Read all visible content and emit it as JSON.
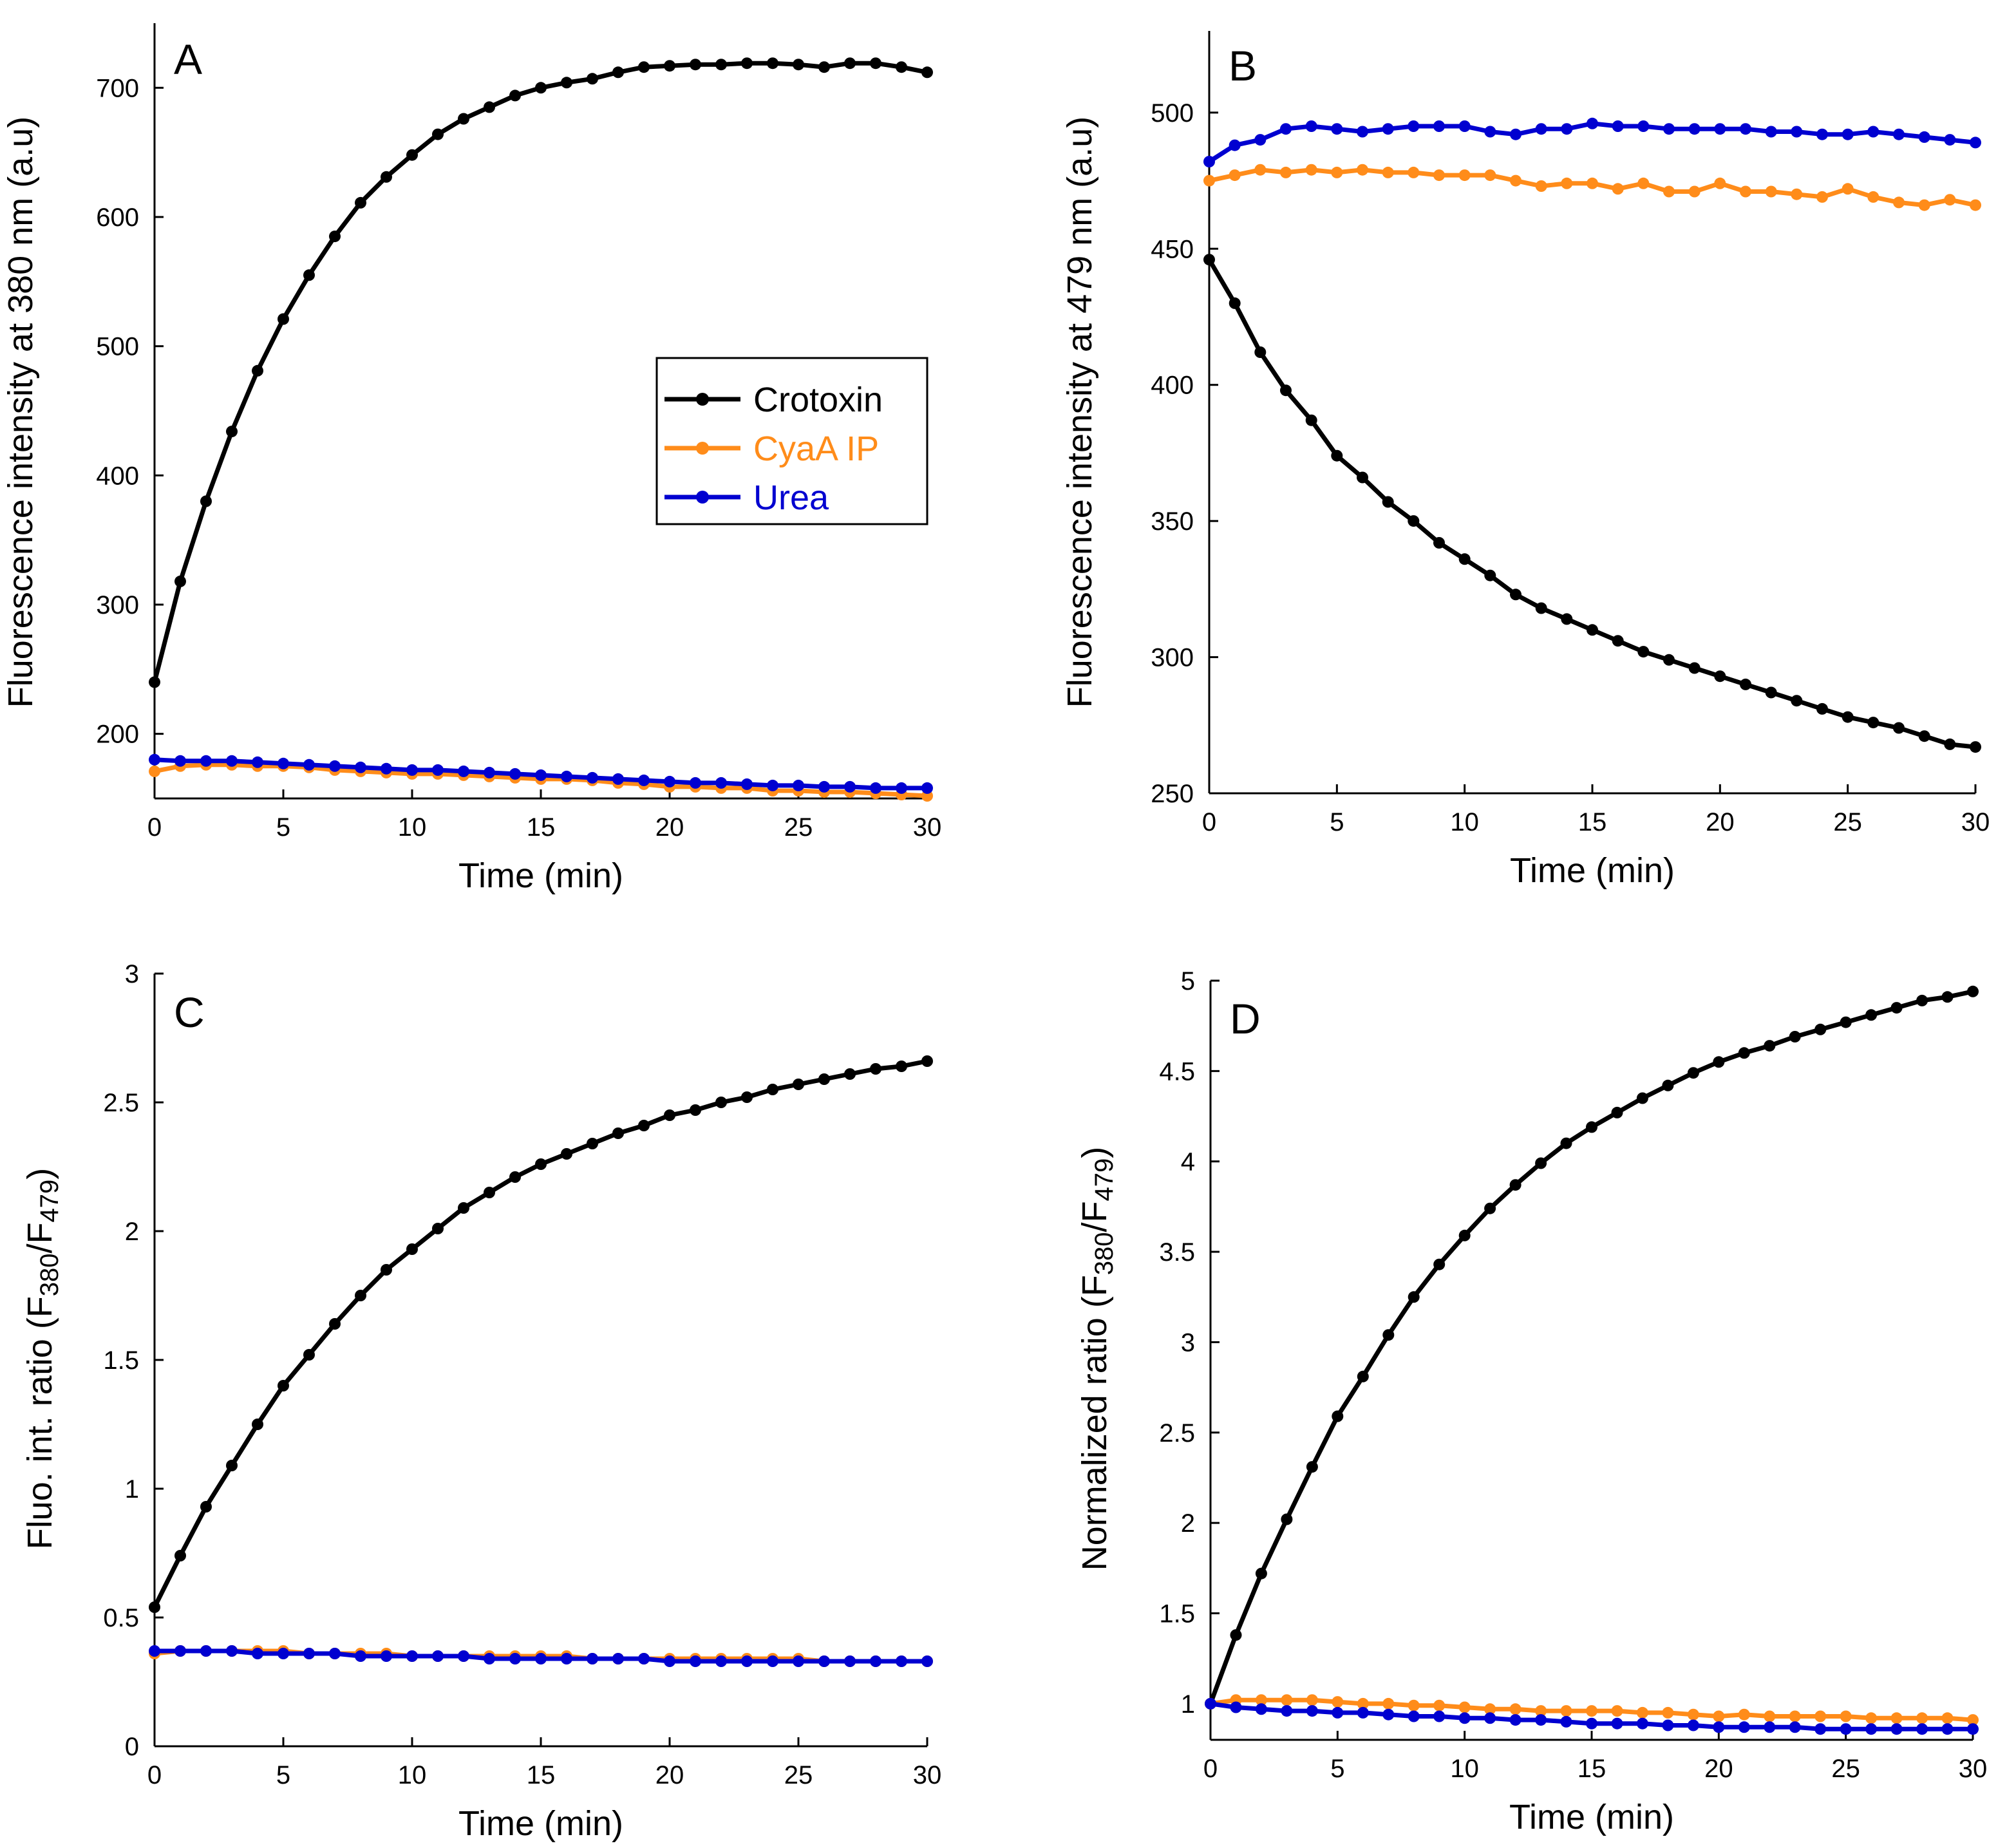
{
  "colors": {
    "crotoxin": "#000000",
    "cyaa": "#ff8c1a",
    "urea": "#0000d0",
    "axis": "#000000"
  },
  "legend": {
    "items": [
      {
        "label": "Crotoxin",
        "color": "#000000"
      },
      {
        "label": "CyaA IP",
        "color": "#ff8c1a"
      },
      {
        "label": "Urea",
        "color": "#0000d0"
      }
    ]
  },
  "chart_data": [
    {
      "panel": "A",
      "type": "line",
      "xlabel": "Time (min)",
      "ylabel": "Fluorescence intensity at 380 nm (a.u)",
      "xlim": [
        0,
        30
      ],
      "ylim": [
        150,
        750
      ],
      "xticks": [
        "0",
        "5",
        "10",
        "15",
        "20",
        "25",
        "30"
      ],
      "yticks": [
        "200",
        "300",
        "400",
        "500",
        "600",
        "700"
      ],
      "ytick_values": [
        200,
        300,
        400,
        500,
        600,
        700
      ],
      "legend_position": "center-right",
      "x": [
        0,
        1,
        2,
        3,
        4,
        5,
        6,
        7,
        8,
        9,
        10,
        11,
        12,
        13,
        14,
        15,
        16,
        17,
        18,
        19,
        20,
        21,
        22,
        23,
        24,
        25,
        26,
        27,
        28,
        29,
        30
      ],
      "series": [
        {
          "name": "Crotoxin",
          "color": "#000000",
          "values": [
            240,
            318,
            380,
            434,
            481,
            521,
            555,
            585,
            611,
            631,
            648,
            664,
            676,
            685,
            694,
            700,
            704,
            707,
            712,
            716,
            717,
            718,
            718,
            719,
            719,
            718,
            716,
            719,
            719,
            716,
            712
          ]
        },
        {
          "name": "CyaA IP",
          "color": "#ff8c1a",
          "values": [
            171,
            175,
            176,
            176,
            175,
            175,
            174,
            172,
            171,
            170,
            169,
            169,
            168,
            167,
            166,
            165,
            165,
            164,
            162,
            161,
            159,
            159,
            158,
            158,
            156,
            156,
            155,
            155,
            154,
            153,
            152
          ]
        },
        {
          "name": "Urea",
          "color": "#0000d0",
          "values": [
            180,
            179,
            179,
            179,
            178,
            177,
            176,
            175,
            174,
            173,
            172,
            172,
            171,
            170,
            169,
            168,
            167,
            166,
            165,
            164,
            163,
            162,
            162,
            161,
            160,
            160,
            159,
            159,
            158,
            158,
            158
          ]
        }
      ]
    },
    {
      "panel": "B",
      "type": "line",
      "xlabel": "Time (min)",
      "ylabel": "Fluorescence intensity at 479 nm (a.u)",
      "xlim": [
        0,
        30
      ],
      "ylim": [
        250,
        530
      ],
      "xticks": [
        "0",
        "5",
        "10",
        "15",
        "20",
        "25",
        "30"
      ],
      "yticks": [
        "250",
        "300",
        "350",
        "400",
        "450",
        "500"
      ],
      "ytick_values": [
        250,
        300,
        350,
        400,
        450,
        500
      ],
      "x": [
        0,
        1,
        2,
        3,
        4,
        5,
        6,
        7,
        8,
        9,
        10,
        11,
        12,
        13,
        14,
        15,
        16,
        17,
        18,
        19,
        20,
        21,
        22,
        23,
        24,
        25,
        26,
        27,
        28,
        29,
        30
      ],
      "series": [
        {
          "name": "Crotoxin",
          "color": "#000000",
          "values": [
            446,
            430,
            412,
            398,
            387,
            374,
            366,
            357,
            350,
            342,
            336,
            330,
            323,
            318,
            314,
            310,
            306,
            302,
            299,
            296,
            293,
            290,
            287,
            284,
            281,
            278,
            276,
            274,
            271,
            268,
            267
          ]
        },
        {
          "name": "CyaA IP",
          "color": "#ff8c1a",
          "values": [
            475,
            477,
            479,
            478,
            479,
            478,
            479,
            478,
            478,
            477,
            477,
            477,
            475,
            473,
            474,
            474,
            472,
            474,
            471,
            471,
            474,
            471,
            471,
            470,
            469,
            472,
            469,
            467,
            466,
            468,
            466
          ]
        },
        {
          "name": "Urea",
          "color": "#0000d0",
          "values": [
            482,
            488,
            490,
            494,
            495,
            494,
            493,
            494,
            495,
            495,
            495,
            493,
            492,
            494,
            494,
            496,
            495,
            495,
            494,
            494,
            494,
            494,
            493,
            493,
            492,
            492,
            493,
            492,
            491,
            490,
            489
          ]
        }
      ]
    },
    {
      "panel": "C",
      "type": "line",
      "xlabel": "Time (min)",
      "ylabel_main": "Fluo. int. ratio (F",
      "ylabel_sub1": "380",
      "ylabel_mid": "/F",
      "ylabel_sub2": "479",
      "ylabel_end": ")",
      "xlim": [
        0,
        30
      ],
      "ylim": [
        0,
        3
      ],
      "xticks": [
        "0",
        "5",
        "10",
        "15",
        "20",
        "25",
        "30"
      ],
      "yticks": [
        "0",
        "0.5",
        "1",
        "1.5",
        "2",
        "2.5",
        "3"
      ],
      "ytick_values": [
        0,
        0.5,
        1,
        1.5,
        2,
        2.5,
        3
      ],
      "x": [
        0,
        1,
        2,
        3,
        4,
        5,
        6,
        7,
        8,
        9,
        10,
        11,
        12,
        13,
        14,
        15,
        16,
        17,
        18,
        19,
        20,
        21,
        22,
        23,
        24,
        25,
        26,
        27,
        28,
        29,
        30
      ],
      "series": [
        {
          "name": "Crotoxin",
          "color": "#000000",
          "values": [
            0.54,
            0.74,
            0.93,
            1.09,
            1.25,
            1.4,
            1.52,
            1.64,
            1.75,
            1.85,
            1.93,
            2.01,
            2.09,
            2.15,
            2.21,
            2.26,
            2.3,
            2.34,
            2.38,
            2.41,
            2.45,
            2.47,
            2.5,
            2.52,
            2.55,
            2.57,
            2.59,
            2.61,
            2.63,
            2.64,
            2.66
          ]
        },
        {
          "name": "CyaA IP",
          "color": "#ff8c1a",
          "values": [
            0.36,
            0.37,
            0.37,
            0.37,
            0.37,
            0.37,
            0.36,
            0.36,
            0.36,
            0.36,
            0.35,
            0.35,
            0.35,
            0.35,
            0.35,
            0.35,
            0.35,
            0.34,
            0.34,
            0.34,
            0.34,
            0.34,
            0.34,
            0.34,
            0.34,
            0.34,
            0.33,
            0.33,
            0.33,
            0.33,
            0.33
          ]
        },
        {
          "name": "Urea",
          "color": "#0000d0",
          "values": [
            0.37,
            0.37,
            0.37,
            0.37,
            0.36,
            0.36,
            0.36,
            0.36,
            0.35,
            0.35,
            0.35,
            0.35,
            0.35,
            0.34,
            0.34,
            0.34,
            0.34,
            0.34,
            0.34,
            0.34,
            0.33,
            0.33,
            0.33,
            0.33,
            0.33,
            0.33,
            0.33,
            0.33,
            0.33,
            0.33,
            0.33
          ]
        }
      ]
    },
    {
      "panel": "D",
      "type": "line",
      "xlabel": "Time (min)",
      "ylabel_main": "Normalized ratio (F",
      "ylabel_sub1": "380",
      "ylabel_mid": "/F",
      "ylabel_sub2": "479",
      "ylabel_end": ")",
      "xlim": [
        0,
        30
      ],
      "ylim": [
        0.8,
        5
      ],
      "xticks": [
        "0",
        "5",
        "10",
        "15",
        "20",
        "25",
        "30"
      ],
      "yticks": [
        "1",
        "1.5",
        "2",
        "2.5",
        "3",
        "3.5",
        "4",
        "4.5",
        "5"
      ],
      "ytick_values": [
        1,
        1.5,
        2,
        2.5,
        3,
        3.5,
        4,
        4.5,
        5
      ],
      "x": [
        0,
        1,
        2,
        3,
        4,
        5,
        6,
        7,
        8,
        9,
        10,
        11,
        12,
        13,
        14,
        15,
        16,
        17,
        18,
        19,
        20,
        21,
        22,
        23,
        24,
        25,
        26,
        27,
        28,
        29,
        30
      ],
      "series": [
        {
          "name": "Crotoxin",
          "color": "#000000",
          "values": [
            1.0,
            1.38,
            1.72,
            2.02,
            2.31,
            2.59,
            2.81,
            3.04,
            3.25,
            3.43,
            3.59,
            3.74,
            3.87,
            3.99,
            4.1,
            4.19,
            4.27,
            4.35,
            4.42,
            4.49,
            4.55,
            4.6,
            4.64,
            4.69,
            4.73,
            4.77,
            4.81,
            4.85,
            4.89,
            4.91,
            4.94
          ]
        },
        {
          "name": "CyaA IP",
          "color": "#ff8c1a",
          "values": [
            1.0,
            1.02,
            1.02,
            1.02,
            1.02,
            1.01,
            1.0,
            1.0,
            0.99,
            0.99,
            0.98,
            0.97,
            0.97,
            0.96,
            0.96,
            0.96,
            0.96,
            0.95,
            0.95,
            0.94,
            0.93,
            0.94,
            0.93,
            0.93,
            0.93,
            0.93,
            0.92,
            0.92,
            0.92,
            0.92,
            0.91
          ]
        },
        {
          "name": "Urea",
          "color": "#0000d0",
          "values": [
            1.0,
            0.98,
            0.97,
            0.96,
            0.96,
            0.95,
            0.95,
            0.94,
            0.93,
            0.93,
            0.92,
            0.92,
            0.91,
            0.91,
            0.9,
            0.89,
            0.89,
            0.89,
            0.88,
            0.88,
            0.87,
            0.87,
            0.87,
            0.87,
            0.86,
            0.86,
            0.86,
            0.86,
            0.86,
            0.86,
            0.86
          ]
        }
      ]
    }
  ]
}
